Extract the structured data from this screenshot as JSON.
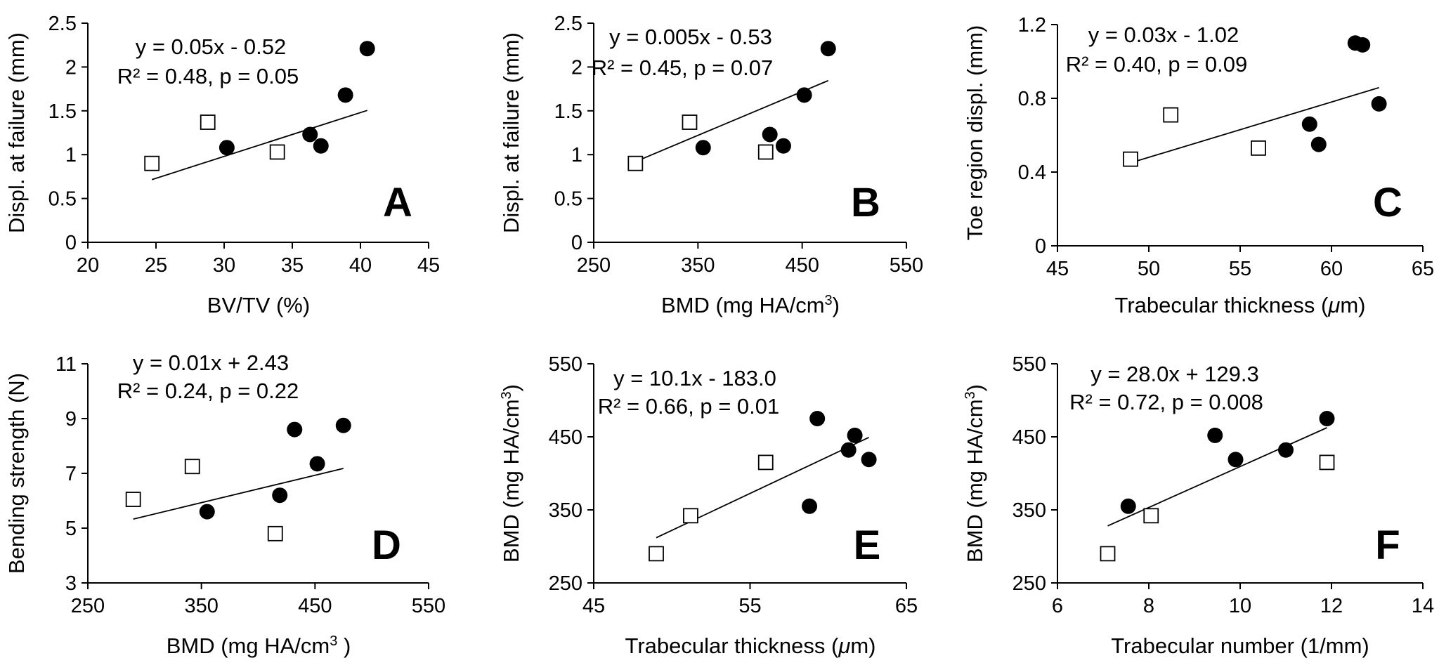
{
  "figure": {
    "marker_legend_note": "",
    "colors": {
      "axis": "#000000",
      "filled_marker": "#000000",
      "open_marker_fill": "#ffffff",
      "trendline": "#000000"
    }
  },
  "chart_data": [
    {
      "panel": "A",
      "type": "scatter",
      "xlabel": "BV/TV (%)",
      "ylabel": "Displ. at failure (mm)",
      "xlim": [
        20,
        45
      ],
      "ylim": [
        0,
        2.5
      ],
      "xticks": [
        "20",
        "25",
        "30",
        "35",
        "40",
        "45"
      ],
      "yticks": [
        "0",
        "0.5",
        "1",
        "1.5",
        "2",
        "2.5"
      ],
      "equation": "y = 0.05x - 0.52",
      "stats": "R² = 0.48, p = 0.05",
      "trendline": {
        "x": [
          24.7,
          40.5
        ]
      },
      "series": [
        {
          "marker": "open-square",
          "points": [
            [
              24.7,
              0.9
            ],
            [
              28.8,
              1.37
            ],
            [
              33.9,
              1.03
            ]
          ]
        },
        {
          "marker": "filled-circle",
          "points": [
            [
              30.2,
              1.08
            ],
            [
              36.3,
              1.23
            ],
            [
              37.1,
              1.1
            ],
            [
              38.9,
              1.68
            ],
            [
              40.5,
              2.21
            ]
          ]
        }
      ]
    },
    {
      "panel": "B",
      "type": "scatter",
      "xlabel": "BMD (mg HA/cm",
      "xlabel_sup": "3",
      "xlabel_tail": ")",
      "ylabel": "Displ. at failure (mm)",
      "xlim": [
        250,
        550
      ],
      "ylim": [
        0,
        2.5
      ],
      "xticks": [
        "250",
        "350",
        "450",
        "550"
      ],
      "yticks": [
        "0",
        "0.5",
        "1",
        "1.5",
        "2",
        "2.5"
      ],
      "equation": "y = 0.005x - 0.53",
      "stats": "R² = 0.45, p = 0.07",
      "trendline": {
        "x": [
          290,
          475
        ]
      },
      "series": [
        {
          "marker": "open-square",
          "points": [
            [
              290,
              0.9
            ],
            [
              342,
              1.37
            ],
            [
              415,
              1.03
            ]
          ]
        },
        {
          "marker": "filled-circle",
          "points": [
            [
              355,
              1.08
            ],
            [
              419,
              1.23
            ],
            [
              432,
              1.1
            ],
            [
              452,
              1.68
            ],
            [
              475,
              2.21
            ]
          ]
        }
      ]
    },
    {
      "panel": "C",
      "type": "scatter",
      "xlabel": "Trabecular thickness (",
      "xlabel_mu": "μ",
      "xlabel_tail": "m)",
      "ylabel": "Toe region displ. (mm)",
      "xlim": [
        45,
        65
      ],
      "ylim": [
        0,
        1.2
      ],
      "xticks": [
        "45",
        "50",
        "55",
        "60",
        "65"
      ],
      "yticks": [
        "0",
        "0.4",
        "0.8",
        "1.2"
      ],
      "equation": "y = 0.03x - 1.02",
      "stats": "R² = 0.40, p = 0.09",
      "trendline": {
        "x": [
          49.0,
          62.6
        ]
      },
      "series": [
        {
          "marker": "open-square",
          "points": [
            [
              49.0,
              0.47
            ],
            [
              51.2,
              0.71
            ],
            [
              56.0,
              0.53
            ]
          ]
        },
        {
          "marker": "filled-circle",
          "points": [
            [
              58.8,
              0.66
            ],
            [
              59.3,
              0.55
            ],
            [
              61.3,
              1.1
            ],
            [
              61.7,
              1.09
            ],
            [
              62.6,
              0.77
            ]
          ]
        }
      ]
    },
    {
      "panel": "D",
      "type": "scatter",
      "xlabel": "BMD (mg HA/cm",
      "xlabel_sup": "3",
      "xlabel_tail": " )",
      "ylabel": "Bending strength (N)",
      "xlim": [
        250,
        550
      ],
      "ylim": [
        3,
        11
      ],
      "xticks": [
        "250",
        "350",
        "450",
        "550"
      ],
      "yticks": [
        "3",
        "5",
        "7",
        "9",
        "11"
      ],
      "equation": "y = 0.01x + 2.43",
      "stats": "R² = 0.24, p = 0.22",
      "trendline": {
        "x": [
          290,
          475
        ]
      },
      "series": [
        {
          "marker": "open-square",
          "points": [
            [
              290,
              6.05
            ],
            [
              342,
              7.25
            ],
            [
              415,
              4.8
            ]
          ]
        },
        {
          "marker": "filled-circle",
          "points": [
            [
              355,
              5.6
            ],
            [
              419,
              6.2
            ],
            [
              432,
              8.6
            ],
            [
              452,
              7.35
            ],
            [
              475,
              8.75
            ]
          ]
        }
      ]
    },
    {
      "panel": "E",
      "type": "scatter",
      "xlabel": "Trabecular thickness (",
      "xlabel_mu": "μ",
      "xlabel_tail": "m)",
      "ylabel": "BMD (mg HA/cm",
      "ylabel_sup": "3",
      "ylabel_tail": ")",
      "xlim": [
        45,
        65
      ],
      "ylim": [
        250,
        550
      ],
      "xticks": [
        "45",
        "55",
        "65"
      ],
      "yticks": [
        "250",
        "350",
        "450",
        "550"
      ],
      "equation": "y = 10.1x - 183.0",
      "stats": "R² = 0.66, p = 0.01",
      "trendline": {
        "x": [
          49.0,
          62.6
        ]
      },
      "series": [
        {
          "marker": "open-square",
          "points": [
            [
              49.0,
              290
            ],
            [
              51.2,
              342
            ],
            [
              56.0,
              415
            ]
          ]
        },
        {
          "marker": "filled-circle",
          "points": [
            [
              58.8,
              355
            ],
            [
              59.3,
              475
            ],
            [
              61.3,
              432
            ],
            [
              61.7,
              452
            ],
            [
              62.6,
              419
            ]
          ]
        }
      ]
    },
    {
      "panel": "F",
      "type": "scatter",
      "xlabel": "Trabecular number (1/mm)",
      "ylabel": "BMD (mg HA/cm",
      "ylabel_sup": "3",
      "ylabel_tail": ")",
      "xlim": [
        6,
        14
      ],
      "ylim": [
        250,
        550
      ],
      "xticks": [
        "6",
        "8",
        "10",
        "12",
        "14"
      ],
      "yticks": [
        "250",
        "350",
        "450",
        "550"
      ],
      "equation": "y = 28.0x + 129.3",
      "stats": "R² = 0.72, p = 0.008",
      "trendline": {
        "x": [
          7.1,
          11.9
        ]
      },
      "series": [
        {
          "marker": "open-square",
          "points": [
            [
              7.1,
              290
            ],
            [
              8.05,
              342
            ],
            [
              11.9,
              415
            ]
          ]
        },
        {
          "marker": "filled-circle",
          "points": [
            [
              7.55,
              355
            ],
            [
              9.45,
              452
            ],
            [
              9.9,
              419
            ],
            [
              11.0,
              432
            ],
            [
              11.9,
              475
            ]
          ]
        }
      ]
    }
  ]
}
